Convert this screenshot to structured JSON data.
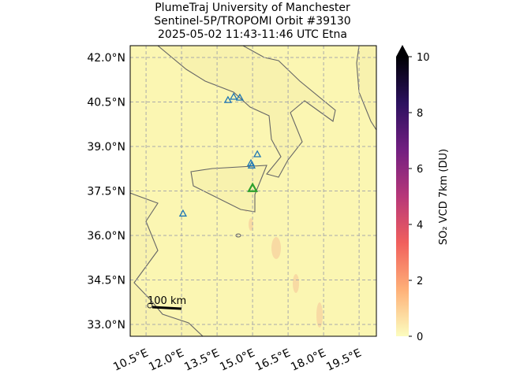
{
  "chart_data": {
    "type": "map",
    "title": [
      "PlumeTraj    University of Manchester",
      "Sentinel-5P/TROPOMI Orbit #39130",
      "2025-05-02   11:43-11:46 UTC   Etna"
    ],
    "xlim": [
      9.83,
      20.23
    ],
    "ylim": [
      32.6,
      42.4
    ],
    "xticks": [
      {
        "value": 10.5,
        "label": "10.5°E"
      },
      {
        "value": 12.0,
        "label": "12.0°E"
      },
      {
        "value": 13.5,
        "label": "13.5°E"
      },
      {
        "value": 15.0,
        "label": "15.0°E"
      },
      {
        "value": 16.5,
        "label": "16.5°E"
      },
      {
        "value": 18.0,
        "label": "18.0°E"
      },
      {
        "value": 19.5,
        "label": "19.5°E"
      }
    ],
    "yticks": [
      {
        "value": 33.0,
        "label": "33.0°N"
      },
      {
        "value": 34.5,
        "label": "34.5°N"
      },
      {
        "value": 36.0,
        "label": "36.0°N"
      },
      {
        "value": 37.5,
        "label": "37.5°N"
      },
      {
        "value": 39.0,
        "label": "39.0°N"
      },
      {
        "value": 40.5,
        "label": "40.5°N"
      },
      {
        "value": 42.0,
        "label": "42.0°N"
      }
    ],
    "grid": true,
    "volcanoes": {
      "color": "#1f77b4",
      "lon": [
        13.96,
        14.2,
        14.46,
        14.93,
        14.96,
        15.2,
        12.06
      ],
      "lat": [
        40.57,
        40.68,
        40.65,
        38.44,
        38.36,
        38.74,
        36.74
      ]
    },
    "target": {
      "color": "#2ca02c",
      "lon": 15.0,
      "lat": 37.6
    },
    "scale_bar": "100 km",
    "colorbar": {
      "label": "SO₂ VCD 7km (DU)",
      "clim": [
        0,
        10
      ],
      "ticks": [
        0,
        2,
        4,
        6,
        8,
        10
      ],
      "colors": [
        "#fcfdbf",
        "#feb078",
        "#f1605d",
        "#b73779",
        "#721f81",
        "#2c115f",
        "#000004"
      ]
    }
  }
}
